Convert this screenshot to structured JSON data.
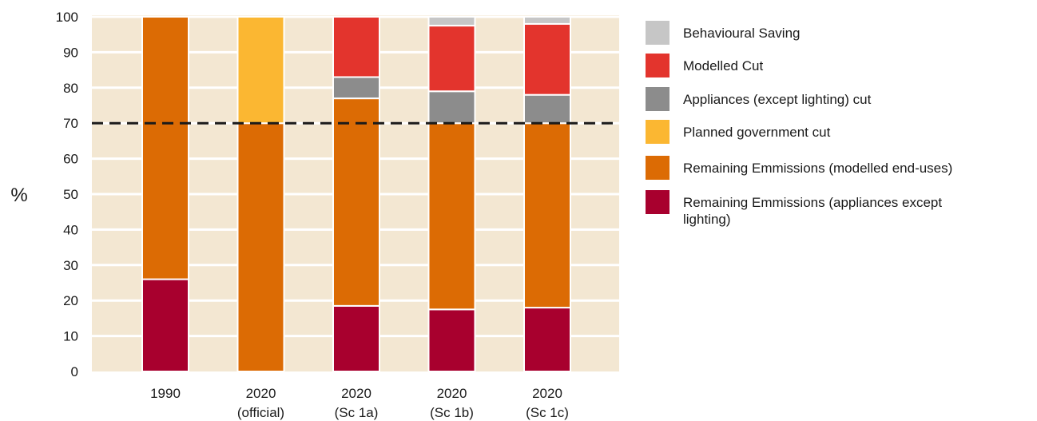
{
  "chart_data": {
    "type": "bar",
    "stacked": true,
    "title": "",
    "xlabel": "",
    "ylabel": "%",
    "ylim": [
      0,
      100
    ],
    "yticks": [
      0,
      10,
      20,
      30,
      40,
      50,
      60,
      70,
      80,
      90,
      100
    ],
    "categories": [
      {
        "line1": "1990",
        "line2": ""
      },
      {
        "line1": "2020",
        "line2": "(official)"
      },
      {
        "line1": "2020",
        "line2": "(Sc 1a)"
      },
      {
        "line1": "2020",
        "line2": "(Sc 1b)"
      },
      {
        "line1": "2020",
        "line2": "(Sc 1c)"
      }
    ],
    "series": [
      {
        "name": "Remaining Emmissions (appliances except lighting)",
        "color": "#a8002e",
        "values": [
          26,
          0,
          18.5,
          17.5,
          18
        ]
      },
      {
        "name": "Remaining Emmissions (modelled end-uses)",
        "color": "#dc6b04",
        "values": [
          74,
          70,
          58.5,
          52.5,
          52
        ]
      },
      {
        "name": "Planned government cut",
        "color": "#fbb732",
        "values": [
          0,
          30,
          0,
          0,
          0
        ]
      },
      {
        "name": "Appliances (except lighting) cut",
        "color": "#8c8c8c",
        "values": [
          0,
          0,
          6,
          9,
          8
        ]
      },
      {
        "name": "Modelled Cut",
        "color": "#e3342d",
        "values": [
          0,
          0,
          17,
          18.5,
          20
        ]
      },
      {
        "name": "Behavioural Saving",
        "color": "#c6c6c6",
        "values": [
          0,
          0,
          0,
          2.5,
          2
        ]
      }
    ],
    "reference_line": {
      "value": 70,
      "style": "dashed",
      "color": "#1a1a1a"
    },
    "legend": {
      "position": "right",
      "entries": [
        "Behavioural Saving",
        "Modelled Cut",
        "Appliances (except lighting) cut",
        "Planned government cut",
        "Remaining Emmissions (modelled end-uses)",
        "Remaining Emmissions (appliances except lighting)"
      ]
    },
    "grid": true,
    "background_color": "#f3e7d2"
  }
}
